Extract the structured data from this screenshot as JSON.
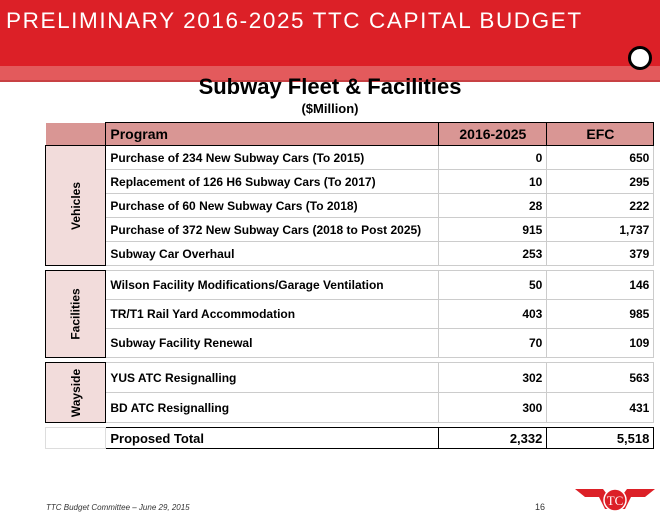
{
  "banner": {
    "title": "PRELIMINARY 2016-2025 TTC CAPITAL BUDGET"
  },
  "slide": {
    "title": "Subway Fleet & Facilities",
    "subtitle": "($Million)"
  },
  "table": {
    "headers": [
      "Program",
      "2016-2025",
      "EFC"
    ],
    "groups": [
      {
        "name": "Vehicles",
        "rows": [
          [
            "Purchase of 234 New Subway Cars  (To 2015)",
            "0",
            "650"
          ],
          [
            "Replacement of 126 H6 Subway Cars  (To 2017)",
            "10",
            "295"
          ],
          [
            "Purchase of 60 New Subway Cars  (To 2018)",
            "28",
            "222"
          ],
          [
            "Purchase of 372 New Subway Cars  (2018 to Post 2025)",
            "915",
            "1,737"
          ],
          [
            "Subway Car Overhaul",
            "253",
            "379"
          ]
        ]
      },
      {
        "name": "Facilities",
        "rows": [
          [
            "Wilson Facility Modifications/Garage Ventilation",
            "50",
            "146"
          ],
          [
            "TR/T1 Rail Yard Accommodation",
            "403",
            "985"
          ],
          [
            "Subway Facility Renewal",
            "70",
            "109"
          ]
        ]
      },
      {
        "name": "Wayside",
        "rows": [
          [
            "YUS ATC Resignalling",
            "302",
            "563"
          ],
          [
            "BD ATC Resignalling",
            "300",
            "431"
          ]
        ]
      }
    ],
    "total": [
      "Proposed Total",
      "2,332",
      "5,518"
    ]
  },
  "footer": {
    "text": "TTC Budget Committee – June 29, 2015",
    "page": "16"
  },
  "colors": {
    "banner": "#dc2027",
    "header_fill": "#d99694",
    "group_fill": "#f2dcdb"
  }
}
